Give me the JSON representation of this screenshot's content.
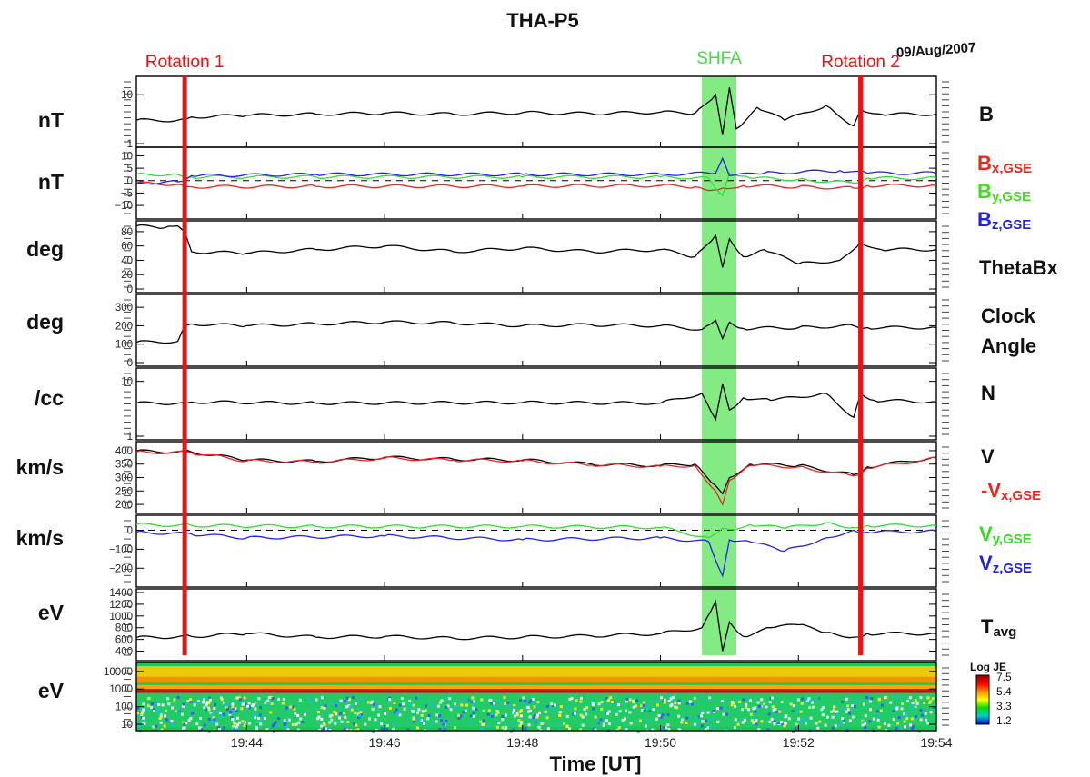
{
  "chart_data": {
    "type": "line",
    "title": "THA-P5",
    "date": "09/Aug/2007",
    "xlabel": "Time [UT]",
    "x_tick_labels": [
      "19:44",
      "19:46",
      "19:48",
      "19:50",
      "19:52",
      "19:54"
    ],
    "x_range_minutes": [
      762.4,
      774.0
    ],
    "x_tick_minutes": [
      764,
      766,
      768,
      770,
      772,
      774
    ],
    "annotations": [
      {
        "label": "Rotation 1",
        "time": "19:43.1",
        "minutes": 763.1,
        "kind": "line",
        "color": "#ee1111"
      },
      {
        "label": "Rotation 2",
        "time": "19:52.9",
        "minutes": 772.9,
        "kind": "line",
        "color": "#ee1111"
      },
      {
        "label": "SHFA",
        "time_start": "19:50.6",
        "time_end": "19:51.1",
        "start_minutes": 770.6,
        "end_minutes": 771.1,
        "kind": "band",
        "color": "#6fe86f"
      }
    ],
    "panels": [
      {
        "id": "b",
        "unit": "nT",
        "scale": "log",
        "ylim": [
          1,
          20
        ],
        "yticks": [
          1,
          10
        ],
        "ytick_labels": [
          "1",
          "10"
        ],
        "labels": [
          {
            "text": "B",
            "color": "#111111"
          }
        ],
        "series": [
          {
            "name": "B",
            "color": "#000000",
            "minutes": [
              762.4,
              763.0,
              763.2,
              764,
              765,
              766,
              767,
              768,
              769,
              770,
              770.5,
              770.8,
              770.9,
              771.0,
              771.1,
              771.4,
              771.8,
              772.4,
              772.8,
              772.9,
              773.2,
              774.0
            ],
            "values": [
              3.0,
              3.0,
              3.5,
              3.8,
              4.0,
              4.2,
              4.0,
              4.3,
              4.1,
              4.4,
              4.2,
              10.0,
              1.5,
              14.0,
              2.0,
              5.5,
              3.0,
              6.0,
              2.3,
              5.0,
              4.0,
              4.0
            ]
          }
        ]
      },
      {
        "id": "bgse",
        "unit": "nT",
        "scale": "linear",
        "ylim": [
          -14,
          12
        ],
        "yticks": [
          -10,
          -5,
          0,
          5,
          10
        ],
        "ytick_labels": [
          "−10",
          "−5",
          "0",
          "5",
          "10"
        ],
        "zero_line": true,
        "labels": [
          {
            "text": "B",
            "sub": "x,GSE",
            "color": "#e8281c"
          },
          {
            "text": "B",
            "sub": "y,GSE",
            "color": "#44dd22"
          },
          {
            "text": "B",
            "sub": "z,GSE",
            "color": "#2222dd"
          }
        ],
        "series": [
          {
            "name": "Bx,GSE",
            "color": "#ee2222",
            "minutes": [
              762.4,
              763.0,
              763.2,
              765,
              768,
              770,
              770.5,
              770.7,
              770.9,
              771.2,
              772.0,
              772.8,
              773.0,
              774.0
            ],
            "values": [
              -1,
              -1.5,
              -2.5,
              -2.3,
              -2.2,
              -2.0,
              -2.5,
              -4.0,
              -3.0,
              -2.0,
              -2.5,
              -3.0,
              -2.0,
              -2.0
            ]
          },
          {
            "name": "By,GSE",
            "color": "#33dd33",
            "minutes": [
              762.4,
              763.0,
              763.2,
              765,
              768,
              770,
              770.7,
              770.9,
              771.0,
              771.3,
              772.0,
              772.8,
              773.0,
              774.0
            ],
            "values": [
              2.5,
              2.5,
              1.5,
              1.5,
              1.5,
              1.5,
              1.0,
              -6.0,
              3.0,
              1.0,
              0.5,
              -1.0,
              1.0,
              1.0
            ]
          },
          {
            "name": "Bz,GSE",
            "color": "#2222ee",
            "minutes": [
              762.4,
              763.0,
              763.2,
              765,
              768,
              770,
              770.8,
              770.9,
              771.0,
              771.5,
              772.6,
              773.0,
              774.0
            ],
            "values": [
              -1.0,
              -0.5,
              2.0,
              2.5,
              2.5,
              2.5,
              3.0,
              9.0,
              2.0,
              3.0,
              4.0,
              3.0,
              3.0
            ]
          }
        ]
      },
      {
        "id": "theta",
        "unit": "deg",
        "scale": "linear",
        "ylim": [
          0,
          90
        ],
        "yticks": [
          0,
          20,
          40,
          60,
          80
        ],
        "ytick_labels": [
          "0",
          "20",
          "40",
          "60",
          "80"
        ],
        "labels": [
          {
            "text": "ThetaBx",
            "color": "#111111"
          }
        ],
        "series": [
          {
            "name": "ThetaBx",
            "color": "#000000",
            "minutes": [
              762.4,
              762.8,
              763.0,
              763.1,
              763.2,
              764,
              765,
              766,
              767,
              768,
              769,
              770,
              770.5,
              770.8,
              770.9,
              771.0,
              771.2,
              771.5,
              772,
              772.6,
              772.9,
              773.2,
              774.0
            ],
            "values": [
              88,
              85,
              88,
              80,
              52,
              50,
              55,
              60,
              52,
              57,
              52,
              55,
              45,
              75,
              30,
              70,
              45,
              55,
              35,
              40,
              65,
              55,
              55
            ]
          }
        ]
      },
      {
        "id": "clock",
        "unit": "deg",
        "scale": "linear",
        "ylim": [
          0,
          350
        ],
        "yticks": [
          0,
          100,
          200,
          300
        ],
        "ytick_labels": [
          "0",
          "100",
          "200",
          "300"
        ],
        "labels": [
          {
            "text": "Clock",
            "color": "#111111"
          },
          {
            "text": "Angle",
            "color": "#111111"
          }
        ],
        "series": [
          {
            "name": "Clock Angle",
            "color": "#000000",
            "minutes": [
              762.4,
              763.0,
              763.1,
              763.2,
              764,
              765,
              766,
              767,
              768,
              769,
              770,
              770.6,
              770.8,
              770.9,
              771.0,
              771.2,
              772,
              772.8,
              773.0,
              774.0
            ],
            "values": [
              110,
              115,
              200,
              210,
              200,
              210,
              220,
              215,
              200,
              205,
              200,
              180,
              230,
              130,
              220,
              185,
              190,
              200,
              190,
              190
            ]
          }
        ]
      },
      {
        "id": "n",
        "unit": "/cc",
        "scale": "log",
        "ylim": [
          1,
          15
        ],
        "yticks": [
          1,
          10
        ],
        "ytick_labels": [
          "1",
          "10"
        ],
        "labels": [
          {
            "text": "N",
            "color": "#111111"
          }
        ],
        "series": [
          {
            "name": "N",
            "color": "#000000",
            "minutes": [
              762.4,
              763.0,
              763.2,
              765,
              768,
              770,
              770.6,
              770.8,
              770.9,
              771.0,
              771.2,
              771.6,
              772.4,
              772.8,
              772.9,
              773.1,
              774.0
            ],
            "values": [
              4.0,
              4.0,
              4.2,
              4.0,
              4.1,
              4.0,
              6.0,
              2.0,
              9.0,
              3.0,
              5.0,
              4.5,
              6.0,
              2.2,
              6.0,
              4.5,
              4.2
            ]
          }
        ]
      },
      {
        "id": "v",
        "unit": "km/s",
        "scale": "linear",
        "ylim": [
          180,
          420
        ],
        "yticks": [
          200,
          250,
          300,
          350,
          400
        ],
        "ytick_labels": [
          "200",
          "250",
          "300",
          "350",
          "400"
        ],
        "labels": [
          {
            "text": "V",
            "color": "#111111"
          },
          {
            "text": "-V",
            "sub": "x,GSE",
            "color": "#e8281c"
          }
        ],
        "series": [
          {
            "name": "V",
            "color": "#000000",
            "minutes": [
              762.4,
              763.2,
              764,
              765,
              766,
              767,
              768,
              769,
              770,
              770.5,
              770.8,
              770.9,
              771.0,
              771.3,
              772,
              772.8,
              773.0,
              774.0
            ],
            "values": [
              398,
              395,
              365,
              360,
              375,
              368,
              365,
              350,
              345,
              350,
              270,
              240,
              300,
              350,
              345,
              310,
              340,
              375
            ]
          },
          {
            "name": "-Vx,GSE",
            "color": "#ee2222",
            "minutes": [
              762.4,
              763.2,
              764,
              765,
              766,
              767,
              768,
              769,
              770,
              770.5,
              770.8,
              770.9,
              771.0,
              771.3,
              772,
              772.8,
              773.0,
              774.0
            ],
            "values": [
              395,
              392,
              362,
              357,
              372,
              365,
              362,
              347,
              342,
              345,
              250,
              200,
              290,
              345,
              340,
              305,
              335,
              372
            ]
          }
        ]
      },
      {
        "id": "vyz",
        "unit": "km/s",
        "scale": "linear",
        "ylim": [
          -280,
          60
        ],
        "yticks": [
          -200,
          -100,
          0
        ],
        "ytick_labels": [
          "−200",
          "−100",
          "0"
        ],
        "zero_line": true,
        "labels": [
          {
            "text": "V",
            "sub": "y,GSE",
            "color": "#33dd22"
          },
          {
            "text": "V",
            "sub": "z,GSE",
            "color": "#2222dd"
          }
        ],
        "series": [
          {
            "name": "Vy,GSE",
            "color": "#33dd33",
            "minutes": [
              762.4,
              763.2,
              765,
              768,
              770,
              770.7,
              770.9,
              771.0,
              771.3,
              771.8,
              772.4,
              772.8,
              773.0,
              774.0
            ],
            "values": [
              30,
              25,
              20,
              20,
              15,
              -40,
              10,
              5,
              30,
              10,
              40,
              15,
              25,
              25
            ]
          },
          {
            "name": "Vz,GSE",
            "color": "#2222ee",
            "minutes": [
              762.4,
              763.2,
              764,
              766,
              768,
              770,
              770.7,
              770.9,
              771.0,
              771.3,
              771.8,
              772.4,
              772.8,
              773.0,
              774.0
            ],
            "values": [
              -10,
              -20,
              -40,
              -30,
              -50,
              -40,
              -60,
              -240,
              -50,
              -60,
              -110,
              -40,
              0,
              -10,
              -5
            ]
          }
        ]
      },
      {
        "id": "t",
        "unit": "eV",
        "scale": "linear",
        "ylim": [
          300,
          1400
        ],
        "yticks": [
          400,
          600,
          800,
          1000,
          1200,
          1400
        ],
        "ytick_labels": [
          "400",
          "600",
          "800",
          "1000",
          "1200",
          "1400"
        ],
        "labels": [
          {
            "text": "T",
            "sub": "avg",
            "color": "#111111"
          }
        ],
        "series": [
          {
            "name": "Tavg",
            "color": "#000000",
            "minutes": [
              762.4,
              763.2,
              764,
              765,
              766,
              767,
              768,
              769,
              770,
              770.6,
              770.8,
              770.9,
              771.0,
              771.2,
              771.6,
              772,
              772.4,
              772.8,
              773.0,
              774.0
            ],
            "values": [
              630,
              650,
              700,
              640,
              650,
              620,
              640,
              660,
              700,
              800,
              1250,
              400,
              900,
              650,
              800,
              850,
              720,
              640,
              700,
              700
            ]
          }
        ]
      },
      {
        "id": "spec",
        "unit": "eV",
        "scale": "log",
        "ylim": [
          7,
          20000
        ],
        "yticks": [
          10,
          100,
          1000,
          10000
        ],
        "ytick_labels": [
          "10",
          "100",
          "1000",
          "10000"
        ],
        "type": "heatmap",
        "colorbar": {
          "title": "Log JE",
          "tick_labels": [
            "7.5",
            "5.4",
            "3.3",
            "1.2"
          ],
          "colors": [
            "#8b0000",
            "#ff0000",
            "#ff8c00",
            "#ffff00",
            "#00dd00",
            "#00cccc",
            "#0000cc"
          ]
        },
        "bands": [
          {
            "from_ev": 20000,
            "to_ev": 2500,
            "color": "#ffcc00"
          },
          {
            "from_ev": 5000,
            "to_ev": 2200,
            "color": "#ff8800"
          },
          {
            "from_ev": 1700,
            "to_ev": 800,
            "color": "#ffaa00"
          },
          {
            "from_ev": 1000,
            "to_ev": 600,
            "color": "#cc0000"
          },
          {
            "from_ev": 600,
            "to_ev": 7,
            "color": "#22cc66"
          }
        ]
      }
    ]
  }
}
